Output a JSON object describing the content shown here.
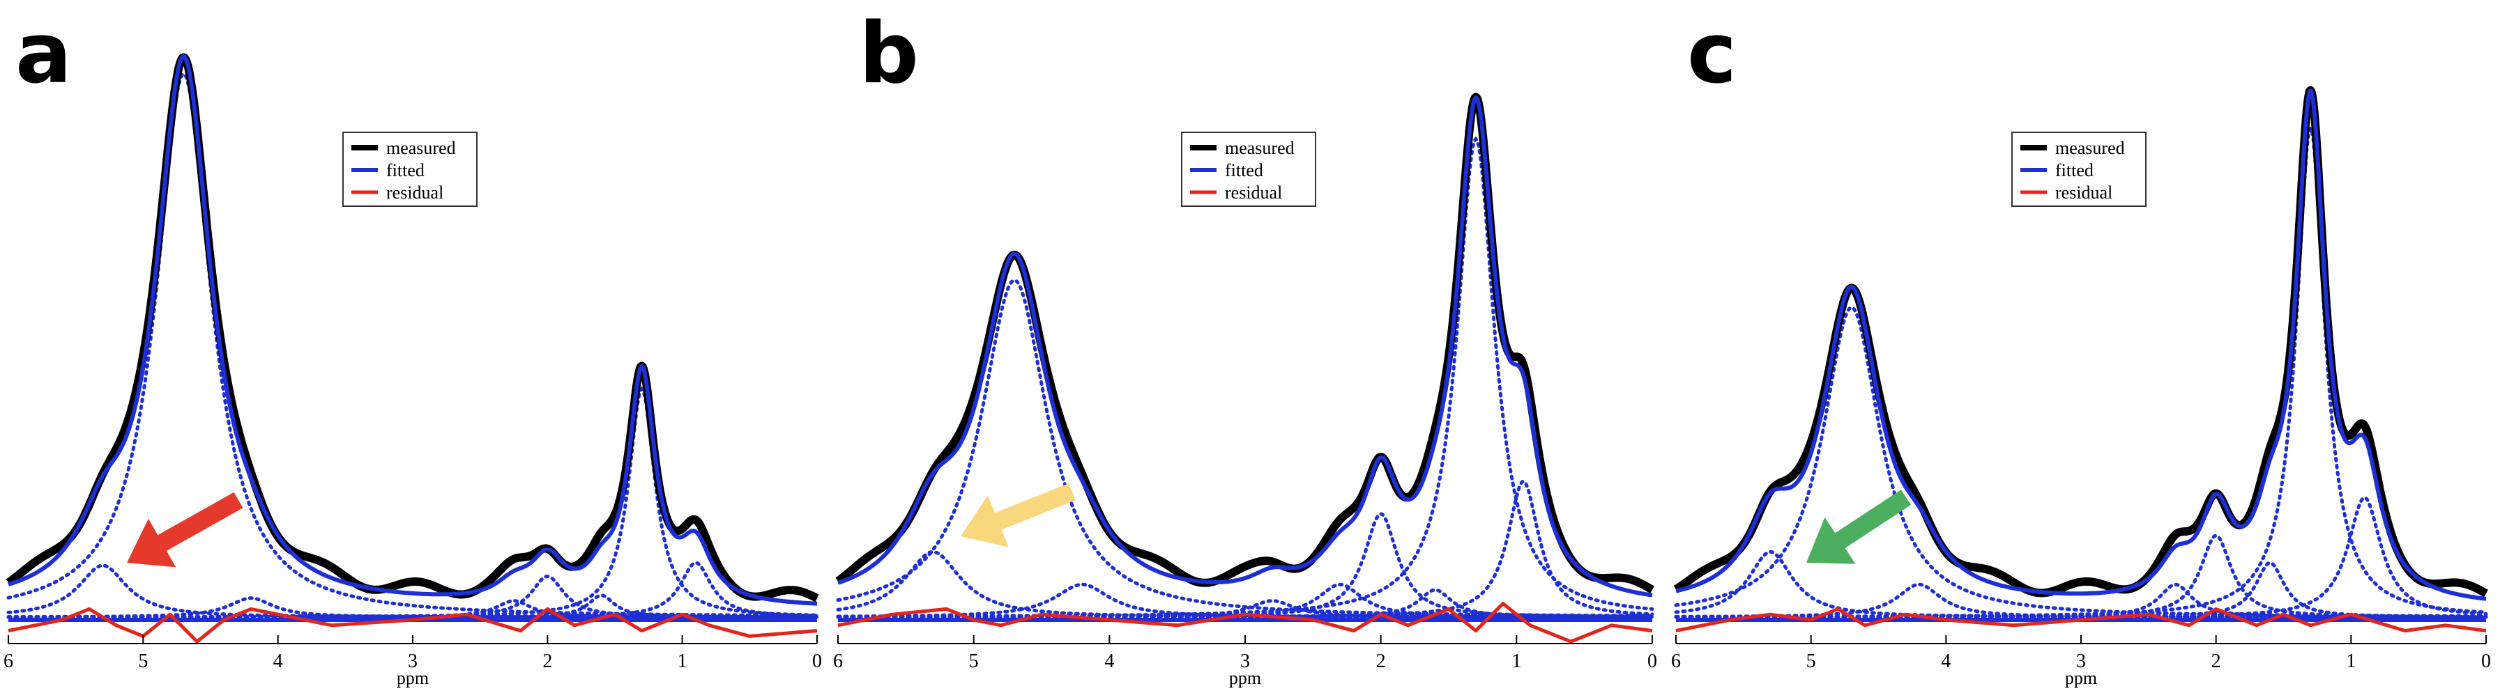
{
  "colors": {
    "measured": "#000000",
    "fitted": "#1f2fd6",
    "components": "#1f2fd6",
    "residual": "#e3261b",
    "arrow_a": "#e53a2b",
    "arrow_b": "#f8d77d",
    "arrow_c": "#4caf5f"
  },
  "icons": {
    "arrow_a": "arrow-icon",
    "arrow_b": "arrow-icon",
    "arrow_c": "arrow-icon"
  },
  "chart_data": [
    {
      "type": "line",
      "panel": "a",
      "xlabel": "ppm",
      "xlim": [
        6,
        0
      ],
      "x_reversed": true,
      "xticks": [
        "6",
        "5",
        "4",
        "3",
        "2",
        "1",
        "0"
      ],
      "grid": false,
      "legend": {
        "position": "top-center",
        "entries": [
          "measured",
          "fitted",
          "residual"
        ]
      },
      "components": [
        {
          "center": 5.3,
          "height": 0.095,
          "width": 0.22
        },
        {
          "center": 4.7,
          "height": 1.0,
          "width": 0.25
        },
        {
          "center": 4.2,
          "height": 0.035,
          "width": 0.2
        },
        {
          "center": 2.25,
          "height": 0.03,
          "width": 0.16
        },
        {
          "center": 2.0,
          "height": 0.075,
          "width": 0.15
        },
        {
          "center": 1.6,
          "height": 0.04,
          "width": 0.12
        },
        {
          "center": 1.3,
          "height": 0.42,
          "width": 0.12
        },
        {
          "center": 0.9,
          "height": 0.1,
          "width": 0.14
        }
      ],
      "residual_points": [
        [
          6.0,
          -0.02
        ],
        [
          5.6,
          0.0
        ],
        [
          5.4,
          0.02
        ],
        [
          5.2,
          -0.01
        ],
        [
          5.0,
          -0.03
        ],
        [
          4.8,
          0.01
        ],
        [
          4.6,
          -0.04
        ],
        [
          4.4,
          0.0
        ],
        [
          4.2,
          0.02
        ],
        [
          4.0,
          0.01
        ],
        [
          3.6,
          -0.01
        ],
        [
          3.0,
          0.0
        ],
        [
          2.6,
          0.01
        ],
        [
          2.2,
          -0.02
        ],
        [
          2.0,
          0.02
        ],
        [
          1.8,
          -0.01
        ],
        [
          1.5,
          0.01
        ],
        [
          1.3,
          -0.02
        ],
        [
          1.0,
          0.01
        ],
        [
          0.8,
          -0.01
        ],
        [
          0.5,
          -0.03
        ],
        [
          0.0,
          -0.02
        ]
      ]
    },
    {
      "type": "line",
      "panel": "b",
      "xlabel": "ppm",
      "xlim": [
        6,
        0
      ],
      "x_reversed": true,
      "xticks": [
        "6",
        "5",
        "4",
        "3",
        "2",
        "1",
        "0"
      ],
      "grid": false,
      "legend": {
        "position": "top-center",
        "entries": [
          "measured",
          "fitted",
          "residual"
        ]
      },
      "components": [
        {
          "center": 5.3,
          "height": 0.12,
          "width": 0.25
        },
        {
          "center": 4.7,
          "height": 0.62,
          "width": 0.3
        },
        {
          "center": 4.2,
          "height": 0.06,
          "width": 0.25
        },
        {
          "center": 2.8,
          "height": 0.03,
          "width": 0.2
        },
        {
          "center": 2.3,
          "height": 0.06,
          "width": 0.2
        },
        {
          "center": 2.0,
          "height": 0.19,
          "width": 0.15
        },
        {
          "center": 1.6,
          "height": 0.05,
          "width": 0.15
        },
        {
          "center": 1.3,
          "height": 0.88,
          "width": 0.17
        },
        {
          "center": 0.95,
          "height": 0.25,
          "width": 0.14
        }
      ],
      "residual_points": [
        [
          6.0,
          -0.01
        ],
        [
          5.6,
          0.01
        ],
        [
          5.2,
          0.02
        ],
        [
          5.0,
          0.0
        ],
        [
          4.8,
          -0.01
        ],
        [
          4.5,
          0.01
        ],
        [
          4.0,
          0.0
        ],
        [
          3.5,
          -0.01
        ],
        [
          3.0,
          0.01
        ],
        [
          2.5,
          0.0
        ],
        [
          2.2,
          -0.02
        ],
        [
          2.0,
          0.01
        ],
        [
          1.8,
          -0.01
        ],
        [
          1.5,
          0.02
        ],
        [
          1.3,
          -0.02
        ],
        [
          1.1,
          0.03
        ],
        [
          0.9,
          -0.01
        ],
        [
          0.6,
          -0.04
        ],
        [
          0.3,
          -0.01
        ],
        [
          0.0,
          -0.02
        ]
      ]
    },
    {
      "type": "line",
      "panel": "c",
      "xlabel": "ppm",
      "xlim": [
        6,
        0
      ],
      "x_reversed": true,
      "xticks": [
        "6",
        "5",
        "4",
        "3",
        "2",
        "1",
        "0"
      ],
      "grid": false,
      "legend": {
        "position": "top-center",
        "entries": [
          "measured",
          "fitted",
          "residual"
        ]
      },
      "components": [
        {
          "center": 5.3,
          "height": 0.12,
          "width": 0.2
        },
        {
          "center": 4.7,
          "height": 0.57,
          "width": 0.26
        },
        {
          "center": 4.2,
          "height": 0.06,
          "width": 0.2
        },
        {
          "center": 2.3,
          "height": 0.06,
          "width": 0.15
        },
        {
          "center": 2.0,
          "height": 0.15,
          "width": 0.14
        },
        {
          "center": 1.6,
          "height": 0.1,
          "width": 0.13
        },
        {
          "center": 1.3,
          "height": 0.9,
          "width": 0.13
        },
        {
          "center": 0.9,
          "height": 0.22,
          "width": 0.15
        }
      ],
      "residual_points": [
        [
          6.0,
          -0.02
        ],
        [
          5.6,
          0.0
        ],
        [
          5.3,
          0.01
        ],
        [
          5.0,
          0.0
        ],
        [
          4.8,
          0.02
        ],
        [
          4.6,
          -0.01
        ],
        [
          4.3,
          0.01
        ],
        [
          4.0,
          0.0
        ],
        [
          3.5,
          -0.01
        ],
        [
          3.0,
          0.0
        ],
        [
          2.5,
          0.01
        ],
        [
          2.2,
          -0.01
        ],
        [
          2.0,
          0.02
        ],
        [
          1.7,
          -0.01
        ],
        [
          1.5,
          0.01
        ],
        [
          1.3,
          -0.01
        ],
        [
          1.0,
          0.01
        ],
        [
          0.6,
          -0.02
        ],
        [
          0.3,
          -0.01
        ],
        [
          0.0,
          -0.02
        ]
      ]
    }
  ],
  "panels": [
    {
      "letter": "a",
      "legend": {
        "measured": "measured",
        "fitted": "fitted",
        "residual": "residual"
      }
    },
    {
      "letter": "b",
      "legend": {
        "measured": "measured",
        "fitted": "fitted",
        "residual": "residual"
      }
    },
    {
      "letter": "c",
      "legend": {
        "measured": "measured",
        "fitted": "fitted",
        "residual": "residual"
      }
    }
  ]
}
